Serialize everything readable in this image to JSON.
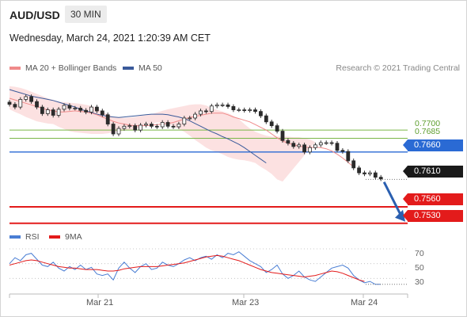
{
  "header": {
    "symbol": "AUD/USD",
    "timeframe": "30 MIN",
    "datetime": "Wednesday, March 24, 2021 1:20:39 AM CET"
  },
  "legend": {
    "ma20_label": "MA 20 + Bollinger Bands",
    "ma50_label": "MA 50",
    "rsi_label": "RSI",
    "ma9_label": "9MA",
    "copyright": "Research © 2021 Trading Central"
  },
  "colors": {
    "ma20": "#f08a8a",
    "ma50": "#3a5a9a",
    "bollinger_fill": "#fbd7d7",
    "resistance_green": "#7ab648",
    "pivot_blue": "#2a6ad4",
    "support_red": "#e31b1b",
    "price_tag": "#1a1a1a",
    "rsi": "#4a7ed4",
    "rsi_ma": "#e31b1b"
  },
  "chart_data": {
    "type": "line",
    "title": "AUD/USD",
    "xlabel": "",
    "ylabel": "",
    "ylim": [
      0.7518,
      0.78
    ],
    "x_ticks": [
      "Mar 21",
      "Mar 23",
      "Mar 24"
    ],
    "levels": {
      "resistances": [
        {
          "value": 0.77,
          "label": "0.7700"
        },
        {
          "value": 0.7685,
          "label": "0.7685"
        }
      ],
      "pivot": {
        "value": 0.766,
        "label": "0.7660"
      },
      "last_price": {
        "value": 0.761,
        "label": "0.7610"
      },
      "supports": [
        {
          "value": 0.756,
          "label": "0.7560"
        },
        {
          "value": 0.753,
          "label": "0.7530"
        }
      ]
    },
    "series": [
      {
        "name": "Price",
        "values": [
          0.7747,
          0.7742,
          0.7756,
          0.7761,
          0.7752,
          0.7742,
          0.773,
          0.7737,
          0.7727,
          0.7738,
          0.7745,
          0.774,
          0.774,
          0.7736,
          0.7733,
          0.7742,
          0.7735,
          0.7728,
          0.7711,
          0.7693,
          0.7703,
          0.7707,
          0.7708,
          0.77,
          0.7709,
          0.7711,
          0.7707,
          0.7706,
          0.7714,
          0.7707,
          0.7706,
          0.7711,
          0.7722,
          0.7722,
          0.7729,
          0.7735,
          0.7734,
          0.7744,
          0.7746,
          0.7746,
          0.7743,
          0.7737,
          0.7737,
          0.7736,
          0.7737,
          0.7734,
          0.7726,
          0.7715,
          0.7708,
          0.7698,
          0.7681,
          0.7676,
          0.767,
          0.7673,
          0.766,
          0.7668,
          0.7673,
          0.7677,
          0.7677,
          0.7676,
          0.7663,
          0.7661,
          0.7644,
          0.7631,
          0.7622,
          0.762,
          0.7622,
          0.7614,
          0.7611
        ]
      },
      {
        "name": "MA 20",
        "values": [
          0.7758,
          0.7755,
          0.7752,
          0.7749,
          0.7746,
          0.7743,
          0.774,
          0.7737,
          0.7735,
          0.7733,
          0.7733,
          0.7734,
          0.7735,
          0.7734,
          0.7733,
          0.7731,
          0.7728,
          0.7724,
          0.772,
          0.7716,
          0.7713,
          0.7711,
          0.7709,
          0.7708,
          0.7708,
          0.7708,
          0.7709,
          0.771,
          0.7711,
          0.7712,
          0.7714,
          0.7717,
          0.772,
          0.7723,
          0.7725,
          0.7727,
          0.7729,
          0.7731,
          0.7731,
          0.7731,
          0.7728,
          0.7724,
          0.7721,
          0.7718,
          0.7715,
          0.771,
          0.7705,
          0.77,
          0.7693,
          0.7686,
          0.768,
          0.7676,
          0.7673,
          0.7671,
          0.7669,
          0.7668,
          0.7669,
          0.7668,
          0.7666,
          0.7662,
          0.7656,
          0.7649,
          0.7641,
          0.7633
        ]
      },
      {
        "name": "Upper band",
        "values": [
          0.778,
          0.7779,
          0.7777,
          0.7774,
          0.777,
          0.7766,
          0.7762,
          0.7758,
          0.7755,
          0.7752,
          0.7751,
          0.775,
          0.7749,
          0.7748,
          0.7746,
          0.7744,
          0.774,
          0.7733,
          0.7729,
          0.7724,
          0.7723,
          0.7722,
          0.7723,
          0.7724,
          0.7726,
          0.7727,
          0.7729,
          0.7732,
          0.7735,
          0.7738,
          0.774,
          0.7742,
          0.7744,
          0.7746,
          0.7747,
          0.7747,
          0.7745,
          0.774,
          0.7737,
          0.7734,
          0.7731,
          0.7726,
          0.772,
          0.7711,
          0.7703,
          0.7697,
          0.7693,
          0.769,
          0.7688,
          0.7688,
          0.7688,
          0.7688,
          0.7687,
          0.7687,
          0.7685,
          0.7683,
          0.7678
        ]
      },
      {
        "name": "Lower band",
        "values": [
          0.7738,
          0.7733,
          0.7729,
          0.7724,
          0.772,
          0.7716,
          0.7714,
          0.7712,
          0.7711,
          0.7706,
          0.7702,
          0.7698,
          0.7696,
          0.7695,
          0.7694,
          0.7693,
          0.7693,
          0.7693,
          0.7694,
          0.7696,
          0.7697,
          0.7699,
          0.77,
          0.7702,
          0.7705,
          0.7709,
          0.7712,
          0.7714,
          0.7714,
          0.7712,
          0.7707,
          0.7702,
          0.7697,
          0.769,
          0.7682,
          0.7675,
          0.7668,
          0.7663,
          0.766,
          0.7656,
          0.7651,
          0.7648,
          0.7646,
          0.7645,
          0.7643,
          0.764,
          0.7633,
          0.7627,
          0.762,
          0.761,
          0.7606
        ]
      },
      {
        "name": "MA 50",
        "values": [
          0.7774,
          0.7771,
          0.7768,
          0.7765,
          0.7762,
          0.776,
          0.7758,
          0.7756,
          0.7754,
          0.7751,
          0.7748,
          0.7745,
          0.7742,
          0.7738,
          0.7735,
          0.7732,
          0.7729,
          0.7727,
          0.7725,
          0.7724,
          0.7723,
          0.7724,
          0.7725,
          0.7726,
          0.7727,
          0.7728,
          0.7729,
          0.7729,
          0.7729,
          0.7728,
          0.7726,
          0.7724,
          0.7721,
          0.7717,
          0.7712,
          0.7707,
          0.7702,
          0.7697,
          0.7693,
          0.7688,
          0.7684,
          0.7679,
          0.7674,
          0.7668,
          0.7661,
          0.7654,
          0.7647,
          0.764
        ]
      }
    ],
    "rsi": {
      "ticks": [
        70,
        50,
        30
      ],
      "ylim": [
        10,
        85
      ],
      "series": [
        {
          "name": "RSI",
          "values": [
            50,
            58,
            54,
            62,
            64,
            56,
            48,
            46,
            52,
            44,
            40,
            46,
            42,
            48,
            42,
            45,
            36,
            34,
            36,
            28,
            44,
            52,
            44,
            38,
            46,
            50,
            42,
            44,
            52,
            48,
            46,
            50,
            55,
            58,
            54,
            58,
            60,
            56,
            62,
            58,
            64,
            62,
            66,
            60,
            54,
            50,
            46,
            38,
            42,
            48,
            36,
            30,
            34,
            40,
            32,
            28,
            26,
            32,
            38,
            44,
            46,
            48,
            44,
            34,
            28,
            24,
            26,
            22,
            22
          ]
        },
        {
          "name": "9MA",
          "values": [
            48,
            50,
            52,
            54,
            55,
            54,
            52,
            50,
            48,
            46,
            45,
            44,
            44,
            43,
            42,
            42,
            42,
            41,
            40,
            40,
            41,
            43,
            44,
            45,
            46,
            46,
            46,
            46,
            47,
            48,
            49,
            50,
            51,
            53,
            55,
            57,
            59,
            60,
            61,
            60,
            58,
            56,
            54,
            51,
            48,
            45,
            42,
            40,
            38,
            37,
            36,
            35,
            34,
            33,
            32,
            33,
            34,
            36,
            38,
            40,
            39,
            37,
            34,
            31,
            28,
            26
          ]
        }
      ]
    }
  }
}
